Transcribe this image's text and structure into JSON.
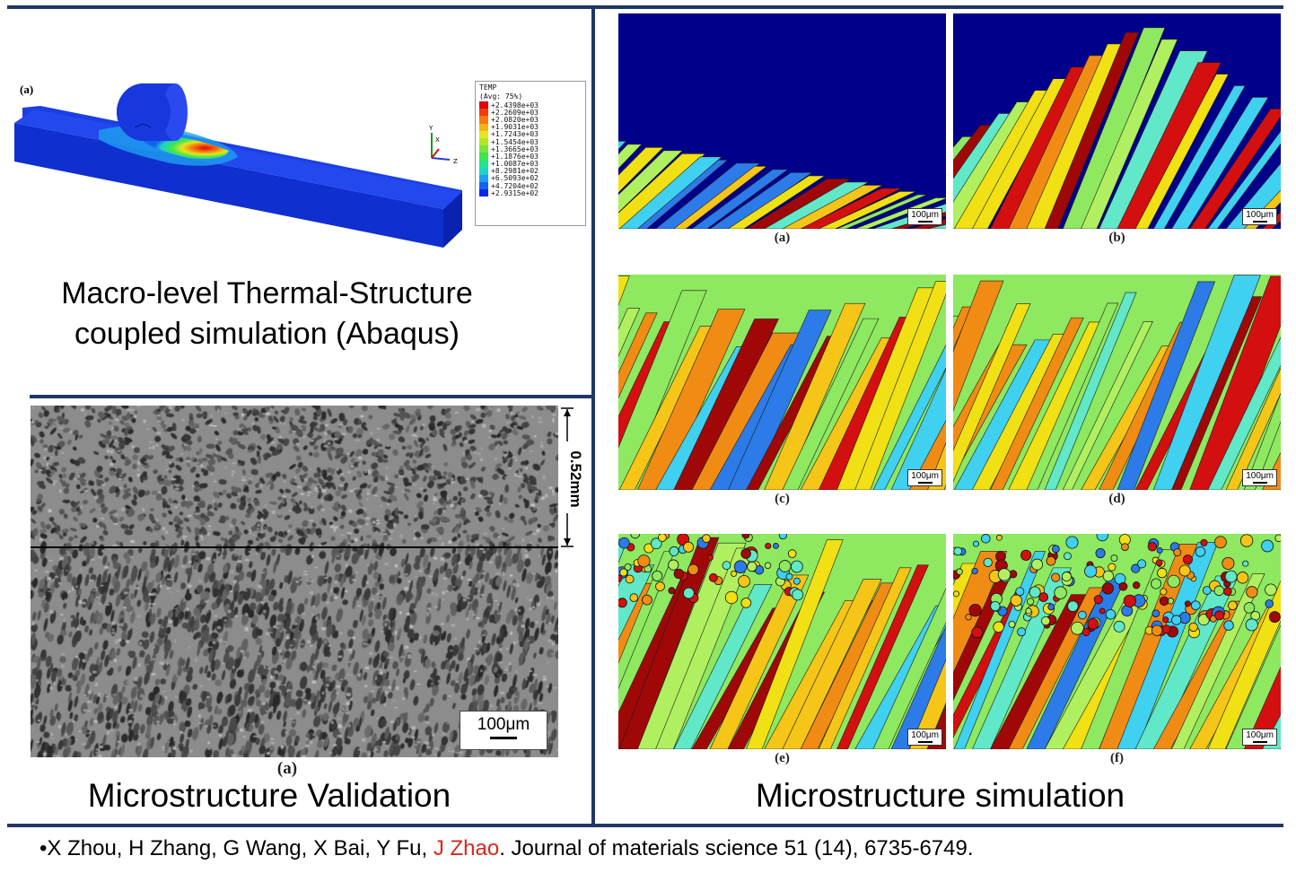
{
  "top_left": {
    "panel_label": "(a)",
    "legend": {
      "title": "TEMP",
      "subtitle": "(Avg: 75%)",
      "entries": [
        "+2.4398e+03",
        "+2.2609e+03",
        "+2.0820e+03",
        "+1.9031e+03",
        "+1.7243e+03",
        "+1.5454e+03",
        "+1.3665e+03",
        "+1.1876e+03",
        "+1.0087e+03",
        "+8.2981e+02",
        "+6.5093e+02",
        "+4.7204e+02",
        "+2.9315e+02"
      ],
      "colors": [
        "#e3000e",
        "#f03c0c",
        "#f5780f",
        "#f4b416",
        "#e6e61e",
        "#b4e628",
        "#78e63c",
        "#3ce650",
        "#1ee68c",
        "#1ed2c8",
        "#1ea0f0",
        "#1464f0",
        "#0a28e6"
      ]
    },
    "axes": {
      "y": "Y",
      "x": "X",
      "z": "Z"
    },
    "caption_line1": "Macro-level Thermal-Structure",
    "caption_line2": "coupled simulation (Abaqus)"
  },
  "bottom_left": {
    "scale_label": "100μm",
    "depth_label": "0.52mm",
    "panel_label": "(a)",
    "caption": "Microstructure Validation"
  },
  "right": {
    "panels": [
      {
        "label": "(a)",
        "scale": "100μm"
      },
      {
        "label": "(b)",
        "scale": "100μm"
      },
      {
        "label": "(c)",
        "scale": "100μm"
      },
      {
        "label": "(d)",
        "scale": "100μm"
      },
      {
        "label": "(e)",
        "scale": "100μm"
      },
      {
        "label": "(f)",
        "scale": "100μm"
      }
    ],
    "caption": "Microstructure simulation"
  },
  "reference": {
    "bullet": "•",
    "authors_before": "X Zhou, H Zhang, G Wang, X Bai, Y Fu, ",
    "highlight_author": "J Zhao",
    "after": ". Journal of materials science 51 (14), 6735-6749."
  },
  "colors": {
    "frame": "#1f3864",
    "highlight": "#d9261c",
    "background_blue": "#00008b"
  }
}
